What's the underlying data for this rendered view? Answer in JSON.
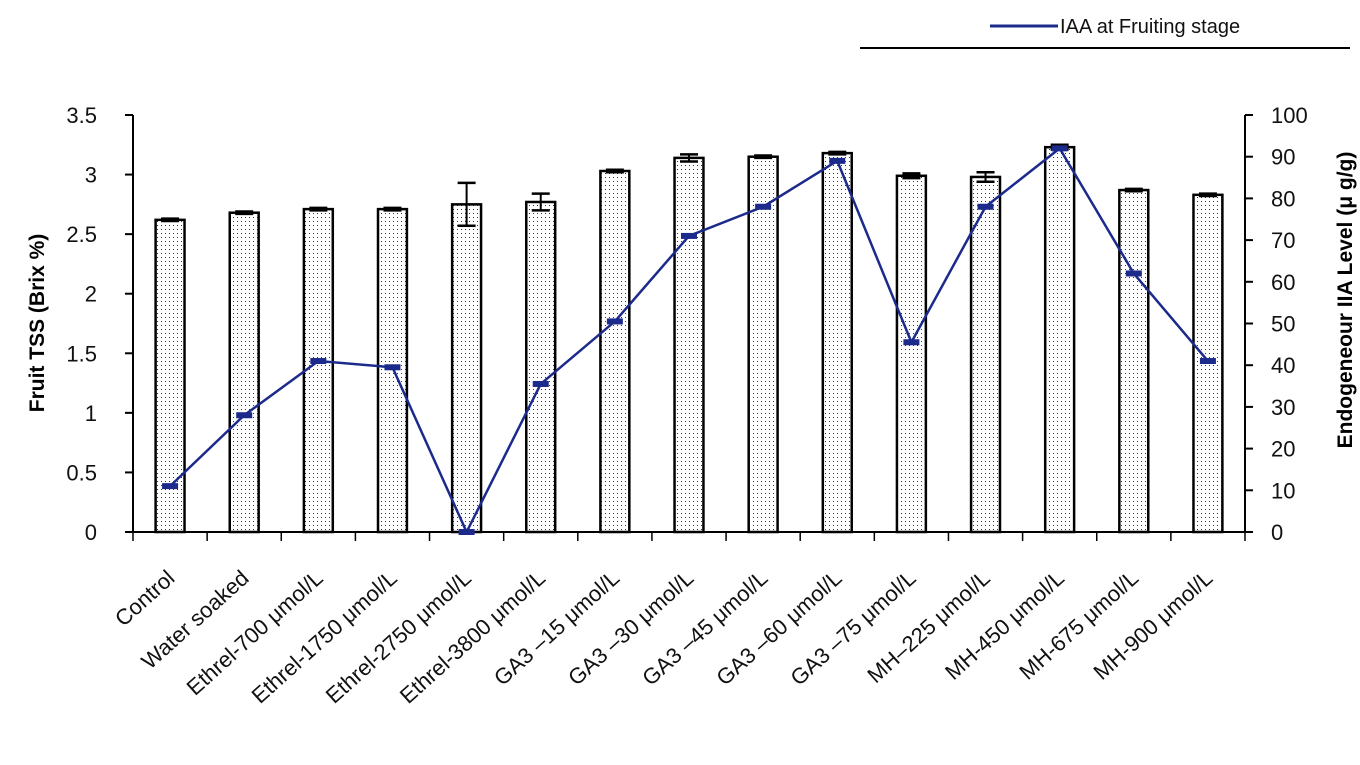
{
  "chart_data": {
    "type": "bar",
    "categories": [
      "Control",
      "Water soaked",
      "Ethrel-700   μmol/L",
      "Ethrel-1750 μmol/L",
      "Ethrel-2750 μmol/L",
      "Ethrel-3800 μmol/L",
      "GA3 –15      μmol/L",
      "GA3 –30      μmol/L",
      "GA3 –45      μmol/L",
      "GA3 –60      μmol/L",
      "GA3 –75      μmol/L",
      "MH–225       μmol/L",
      "MH-450       μmol/L",
      "MH-675       μmol/L",
      "MH-900       μmol/L"
    ],
    "series": [
      {
        "name": "",
        "axis": "left",
        "kind": "bar",
        "values": [
          2.62,
          2.68,
          2.71,
          2.71,
          2.75,
          2.77,
          3.03,
          3.14,
          3.15,
          3.18,
          2.99,
          2.98,
          3.23,
          2.87,
          2.83
        ],
        "errors": [
          0.01,
          0.01,
          0.01,
          0.01,
          0.18,
          0.07,
          0.01,
          0.03,
          0.01,
          0.01,
          0.02,
          0.04,
          0.02,
          0.01,
          0.01
        ]
      },
      {
        "name": "IAA at Fruiting  stage",
        "axis": "right",
        "kind": "line",
        "color": "#1c2a8c",
        "values": [
          11,
          28,
          41,
          39.5,
          0,
          35.5,
          50.5,
          71,
          78,
          89,
          45.5,
          78,
          92,
          62,
          41
        ]
      }
    ],
    "ylabel": "Fruit TSS (Brix %)",
    "y2label": "Endogeneour IIA Level   (μ g/g)",
    "ylim": [
      0,
      3.5
    ],
    "y2lim": [
      0,
      100
    ],
    "yticks": [
      "0",
      "0.5",
      "1",
      "1.5",
      "2",
      "2.5",
      "3",
      "3.5"
    ],
    "y2ticks": [
      "0",
      "10",
      "20",
      "30",
      "40",
      "50",
      "60",
      "70",
      "80",
      "90",
      "100"
    ],
    "grid": false,
    "legend_position": "top-right"
  }
}
